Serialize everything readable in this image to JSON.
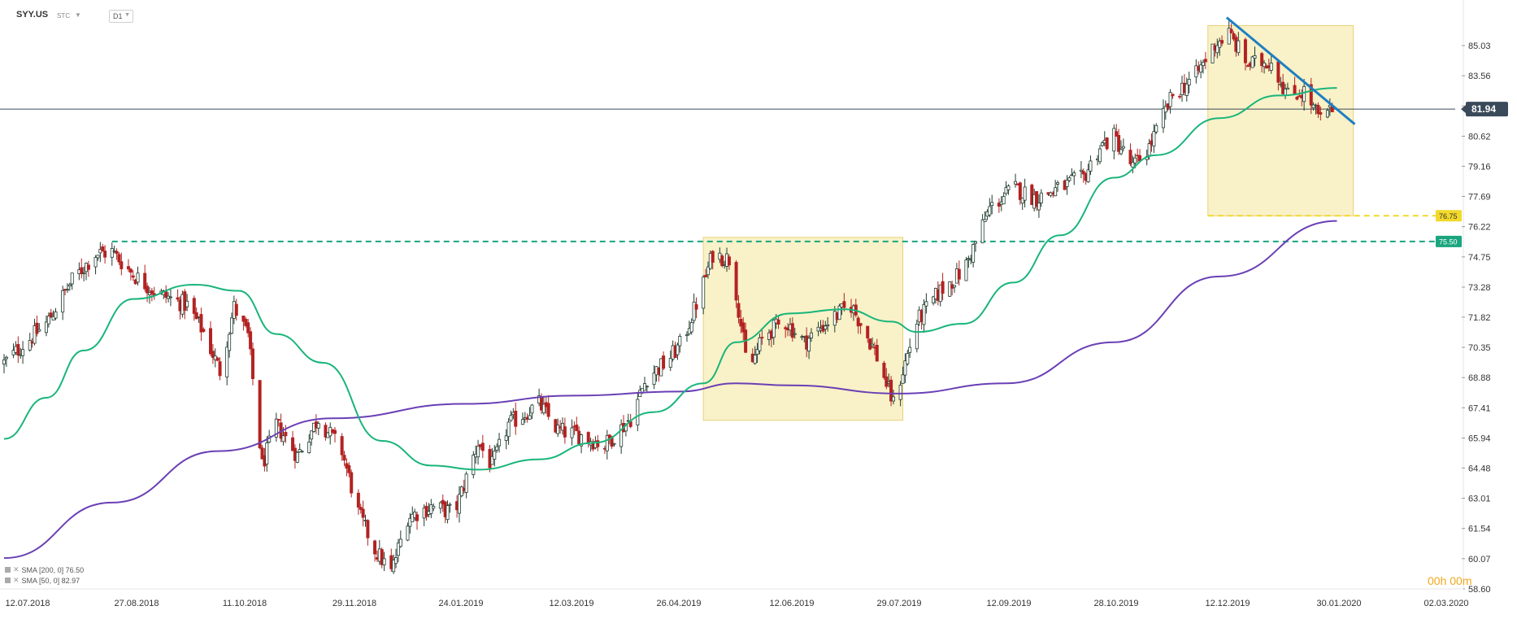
{
  "header": {
    "symbol": "SYY.US",
    "market": "STC",
    "timeframe": "D1"
  },
  "indicators": [
    {
      "label": "SMA [200, 0] 76.50",
      "color": "#6a3fb5"
    },
    {
      "label": "SMA [50, 0] 82.97",
      "color": "#19b57a"
    }
  ],
  "timer": "00h 00m",
  "chart_data": {
    "type": "candlestick",
    "y_ticks": [
      "85.03",
      "83.56",
      "82.09",
      "80.62",
      "79.16",
      "77.69",
      "76.22",
      "74.75",
      "73.28",
      "71.82",
      "70.35",
      "68.88",
      "67.41",
      "65.94",
      "64.48",
      "63.01",
      "61.54",
      "60.07",
      "58.60"
    ],
    "x_ticks": [
      "12.07.2018",
      "27.08.2018",
      "11.10.2018",
      "29.11.2018",
      "24.01.2019",
      "12.03.2019",
      "26.04.2019",
      "12.06.2019",
      "29.07.2019",
      "12.09.2019",
      "28.10.2019",
      "12.12.2019",
      "30.01.2020",
      "02.03.2020"
    ],
    "x_range": [
      "2018-07-12",
      "2020-03-02"
    ],
    "y_range": [
      58.6,
      86.0
    ],
    "current_price": {
      "label": "81.94",
      "value": 81.94,
      "color": "#3a4a5a"
    },
    "levels": [
      {
        "label": "76.75",
        "value": 76.75,
        "color": "#f2d92a",
        "style": "dashed",
        "from": "2019-12-07"
      },
      {
        "label": "75.50",
        "value": 75.5,
        "color": "#1aa57e",
        "style": "dashed",
        "from": "2018-08-27"
      }
    ],
    "zones": [
      {
        "from": "2019-05-06",
        "to": "2019-07-30",
        "low": 66.8,
        "high": 75.7,
        "color": "#f7ecb6"
      },
      {
        "from": "2019-12-07",
        "to": "2020-02-07",
        "low": 76.75,
        "high": 86.0,
        "color": "#f7ecb6"
      }
    ],
    "trendline": {
      "from": [
        "2019-12-15",
        86.0
      ],
      "to": [
        "2020-01-31",
        81.6
      ],
      "color": "#1e7fc2"
    },
    "anchors": [
      [
        "2018-07-12",
        69.6
      ],
      [
        "2018-07-30",
        71.5
      ],
      [
        "2018-08-10",
        73.6
      ],
      [
        "2018-08-20",
        74.9
      ],
      [
        "2018-08-27",
        75.0
      ],
      [
        "2018-09-05",
        73.9
      ],
      [
        "2018-09-15",
        73.0
      ],
      [
        "2018-09-28",
        72.4
      ],
      [
        "2018-10-05",
        71.1
      ],
      [
        "2018-10-12",
        69.2
      ],
      [
        "2018-10-18",
        72.3
      ],
      [
        "2018-10-24",
        70.9
      ],
      [
        "2018-10-30",
        64.6
      ],
      [
        "2018-11-05",
        66.6
      ],
      [
        "2018-11-14",
        65.1
      ],
      [
        "2018-11-23",
        66.9
      ],
      [
        "2018-12-03",
        65.3
      ],
      [
        "2018-12-10",
        62.3
      ],
      [
        "2018-12-17",
        60.5
      ],
      [
        "2018-12-24",
        59.4
      ],
      [
        "2018-12-31",
        62.1
      ],
      [
        "2019-01-10",
        62.6
      ],
      [
        "2019-01-20",
        62.3
      ],
      [
        "2019-01-30",
        65.7
      ],
      [
        "2019-02-05",
        64.6
      ],
      [
        "2019-02-12",
        66.6
      ],
      [
        "2019-02-25",
        67.6
      ],
      [
        "2019-03-05",
        66.3
      ],
      [
        "2019-03-14",
        66.1
      ],
      [
        "2019-03-25",
        65.6
      ],
      [
        "2019-04-05",
        66.9
      ],
      [
        "2019-04-12",
        68.9
      ],
      [
        "2019-04-20",
        69.6
      ],
      [
        "2019-04-27",
        70.6
      ],
      [
        "2019-05-05",
        73.1
      ],
      [
        "2019-05-10",
        74.9
      ],
      [
        "2019-05-18",
        74.6
      ],
      [
        "2019-05-25",
        69.1
      ],
      [
        "2019-06-01",
        71.0
      ],
      [
        "2019-06-10",
        71.6
      ],
      [
        "2019-06-18",
        70.6
      ],
      [
        "2019-06-28",
        71.6
      ],
      [
        "2019-07-08",
        72.4
      ],
      [
        "2019-07-18",
        70.2
      ],
      [
        "2019-07-26",
        67.6
      ],
      [
        "2019-08-05",
        71.6
      ],
      [
        "2019-08-15",
        73.1
      ],
      [
        "2019-08-25",
        74.1
      ],
      [
        "2019-09-05",
        77.1
      ],
      [
        "2019-09-15",
        78.1
      ],
      [
        "2019-09-25",
        77.6
      ],
      [
        "2019-10-05",
        78.1
      ],
      [
        "2019-10-15",
        78.6
      ],
      [
        "2019-10-22",
        80.1
      ],
      [
        "2019-10-28",
        80.6
      ],
      [
        "2019-11-05",
        79.1
      ],
      [
        "2019-11-12",
        80.1
      ],
      [
        "2019-11-22",
        82.6
      ],
      [
        "2019-12-02",
        83.6
      ],
      [
        "2019-12-10",
        85.1
      ],
      [
        "2019-12-16",
        85.6
      ],
      [
        "2019-12-24",
        84.1
      ],
      [
        "2020-01-03",
        84.3
      ],
      [
        "2020-01-10",
        82.6
      ],
      [
        "2020-01-17",
        82.8
      ],
      [
        "2020-01-24",
        81.4
      ],
      [
        "2020-01-29",
        81.94
      ]
    ],
    "series": [
      {
        "name": "SMA [200, 0]",
        "color": "#6a3fb5",
        "points": [
          [
            "2018-07-12",
            60.1
          ],
          [
            "2018-08-27",
            62.8
          ],
          [
            "2018-10-11",
            65.3
          ],
          [
            "2018-11-29",
            66.9
          ],
          [
            "2019-01-24",
            67.6
          ],
          [
            "2019-03-12",
            68.0
          ],
          [
            "2019-04-26",
            68.2
          ],
          [
            "2019-05-20",
            68.6
          ],
          [
            "2019-06-12",
            68.5
          ],
          [
            "2019-07-29",
            68.1
          ],
          [
            "2019-09-12",
            68.6
          ],
          [
            "2019-10-28",
            70.6
          ],
          [
            "2019-12-12",
            73.8
          ],
          [
            "2020-01-31",
            76.5
          ]
        ]
      },
      {
        "name": "SMA [50, 0]",
        "color": "#19b57a",
        "points": [
          [
            "2018-07-12",
            65.9
          ],
          [
            "2018-07-30",
            67.9
          ],
          [
            "2018-08-15",
            70.2
          ],
          [
            "2018-09-05",
            72.7
          ],
          [
            "2018-10-01",
            73.4
          ],
          [
            "2018-10-20",
            73.1
          ],
          [
            "2018-11-05",
            71.0
          ],
          [
            "2018-11-25",
            69.6
          ],
          [
            "2018-12-20",
            65.8
          ],
          [
            "2019-01-10",
            64.6
          ],
          [
            "2019-01-30",
            64.4
          ],
          [
            "2019-02-25",
            64.9
          ],
          [
            "2019-03-20",
            65.7
          ],
          [
            "2019-04-15",
            67.2
          ],
          [
            "2019-05-06",
            68.6
          ],
          [
            "2019-05-20",
            70.6
          ],
          [
            "2019-06-12",
            72.0
          ],
          [
            "2019-07-05",
            72.2
          ],
          [
            "2019-07-25",
            71.6
          ],
          [
            "2019-08-05",
            71.1
          ],
          [
            "2019-08-25",
            71.5
          ],
          [
            "2019-09-15",
            73.5
          ],
          [
            "2019-10-05",
            75.8
          ],
          [
            "2019-10-28",
            78.6
          ],
          [
            "2019-11-15",
            79.7
          ],
          [
            "2019-12-12",
            81.5
          ],
          [
            "2020-01-06",
            82.6
          ],
          [
            "2020-01-31",
            82.97
          ]
        ]
      }
    ]
  }
}
